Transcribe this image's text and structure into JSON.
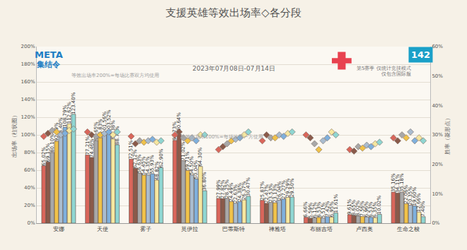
{
  "chart_data": {
    "type": "bar",
    "title": "支援英雄等效出场率◇各分段",
    "subtitle": "2023年07月08日-07月14日",
    "y_label": "出场率（柱状图）",
    "y2_label": "胜率（菱形点）",
    "annotations": [
      "META",
      "集结令",
      "142",
      "等效出场率200%=每场比赛双方均使用",
      "等效出场率100%=每场比赛一方使用",
      "第5赛季 仅统计竞技模式",
      "仅包含国际服"
    ],
    "categories": [
      "安娜",
      "天使",
      "雾子",
      "莫伊拉",
      "巴蒂斯特",
      "禅雅塔",
      "布丽吉塔",
      "卢西奥",
      "生命之梭"
    ],
    "ylim": [
      0,
      200
    ],
    "yticks": [
      {
        "value": 0,
        "label": "0%"
      },
      {
        "value": 20,
        "label": "20%"
      },
      {
        "value": 40,
        "label": "40%"
      },
      {
        "value": 60,
        "label": "60%"
      },
      {
        "value": 80,
        "label": "80%"
      },
      {
        "value": 100,
        "label": "100%"
      },
      {
        "value": 120,
        "label": "120%"
      },
      {
        "value": 140,
        "label": "140%"
      },
      {
        "value": 160,
        "label": "160%"
      },
      {
        "value": 180,
        "label": "180%"
      },
      {
        "value": 200,
        "label": "200%"
      }
    ],
    "y2lim": [
      0,
      60
    ],
    "y2ticks": [
      {
        "value": 0,
        "label": "0%"
      },
      {
        "value": 10,
        "label": "10%"
      },
      {
        "value": 20,
        "label": "20%"
      },
      {
        "value": 30,
        "label": "30%"
      },
      {
        "value": 40,
        "label": "40%"
      },
      {
        "value": 50,
        "label": "50%"
      },
      {
        "value": 60,
        "label": "60%"
      }
    ],
    "grid": true,
    "data_labels": true,
    "series": [
      {
        "type": "bar",
        "color": "#d9665b",
        "values": [
          65.02,
          77.21,
          72.51,
          93.73,
          27.99,
          25.87,
          6.66,
          9.61,
          35.16
        ],
        "value_labels": [
          "65.02%",
          "77.21%",
          "72.51%",
          "93.73%",
          "27.99%",
          "25.87%",
          "6.66%",
          "9.61%",
          "35.16%"
        ]
      },
      {
        "type": "bar",
        "color": "#8a5a4a",
        "values": [
          69.15,
          74.46,
          62.12,
          100.64,
          27.82,
          22.47,
          5.59,
          8.65,
          34.11
        ],
        "value_labels": [
          "69.15%",
          "74.46%",
          "62.12%",
          "100.64%",
          "27.82%",
          "22.47%",
          "5.59%",
          "8.65%",
          "34.11%"
        ]
      },
      {
        "type": "bar",
        "color": "#a8a8a8",
        "values": [
          80.1,
          93.65,
          56.63,
          71.02,
          28.25,
          23.53,
          6.12,
          8.02,
          35.18
        ],
        "value_labels": [
          "80.10%",
          "93.65%",
          "56.63%",
          "71.02%",
          "28.25%",
          "23.53%",
          "6.12%",
          "8.02%",
          "35.18%"
        ]
      },
      {
        "type": "bar",
        "color": "#f0c24a",
        "values": [
          92.79,
          96.83,
          54.45,
          59.71,
          24.49,
          23.13,
          6.53,
          7.56,
          22.06
        ],
        "value_labels": [
          "92.79%",
          "96.83%",
          "54.45%",
          "59.71%",
          "24.49%",
          "23.13%",
          "6.53%",
          "7.56%",
          "22.06%"
        ]
      },
      {
        "type": "bar",
        "color": "#a9bccf",
        "values": [
          98.4,
          101.56,
          54.35,
          54.5,
          22.63,
          26.04,
          5.51,
          6.96,
          20.35
        ],
        "value_labels": [
          "98.40%",
          "101.56%",
          "54.35%",
          "54.50%",
          "22.63%",
          "26.04%",
          "5.51%",
          "6.96%",
          "20.35%"
        ]
      },
      {
        "type": "bar",
        "color": "#7fb0dd",
        "values": [
          108.79,
          103.52,
          55.93,
          50.04,
          24.38,
          27.27,
          7.42,
          6.53,
          19.6
        ],
        "value_labels": [
          "108.79%",
          "103.52%",
          "55.93%",
          "50.04%",
          "24.38%",
          "27.27%",
          "7.42%",
          "6.53%",
          "19.60%"
        ]
      },
      {
        "type": "bar",
        "color": "#f6e7a0",
        "values": [
          112.62,
          95.38,
          48.82,
          64.3,
          26.37,
          29.29,
          6.95,
          6.35,
          12.66
        ],
        "value_labels": [
          "112.62%",
          "95.38%",
          "48.82%",
          "64.30%",
          "26.37%",
          "29.29%",
          "6.95%",
          "6.35%",
          "12.66%"
        ]
      },
      {
        "type": "bar",
        "color": "#8fd6d2",
        "values": [
          123.4,
          88.74,
          62.9,
          36.8,
          30.47,
          29.5,
          11.61,
          10.02,
          7.4
        ],
        "value_labels": [
          "123.40%",
          "88.74%",
          "62.90%",
          "36.80%",
          "30.47%",
          "29.50%",
          "11.61%",
          "10.02%",
          "7.40%"
        ]
      },
      {
        "type": "scatter",
        "axis": "y2",
        "marker": "diamond",
        "color": "#d9665b",
        "values": [
          29.5,
          31,
          29.5,
          30,
          25,
          28,
          30,
          25,
          29
        ]
      },
      {
        "type": "scatter",
        "axis": "y2",
        "marker": "diamond",
        "color": "#8a5a4a",
        "values": [
          30.5,
          30,
          27,
          31,
          26,
          30,
          29,
          24.5,
          28
        ]
      },
      {
        "type": "scatter",
        "axis": "y2",
        "marker": "diamond",
        "color": "#a8a8a8",
        "values": [
          31.5,
          29.5,
          28,
          29,
          27,
          29,
          27,
          26,
          30
        ]
      },
      {
        "type": "scatter",
        "axis": "y2",
        "marker": "diamond",
        "color": "#f0c24a",
        "values": [
          31,
          30,
          27.5,
          28,
          28,
          29,
          25,
          25.5,
          29
        ]
      },
      {
        "type": "scatter",
        "axis": "y2",
        "marker": "diamond",
        "color": "#a9bccf",
        "values": [
          30,
          30.5,
          28,
          29,
          28.5,
          30,
          28,
          26.5,
          31
        ]
      },
      {
        "type": "scatter",
        "axis": "y2",
        "marker": "diamond",
        "color": "#7fb0dd",
        "values": [
          30.5,
          31,
          28.5,
          28,
          29,
          29.5,
          29,
          26,
          28
        ]
      },
      {
        "type": "scatter",
        "axis": "y2",
        "marker": "diamond",
        "color": "#f6e7a0",
        "values": [
          31.5,
          30,
          27.5,
          30,
          30,
          30.5,
          31,
          27,
          29
        ]
      },
      {
        "type": "scatter",
        "axis": "y2",
        "marker": "diamond",
        "color": "#8fd6d2",
        "values": [
          32,
          31,
          28,
          30,
          31,
          31,
          30,
          27.5,
          28
        ]
      }
    ]
  }
}
